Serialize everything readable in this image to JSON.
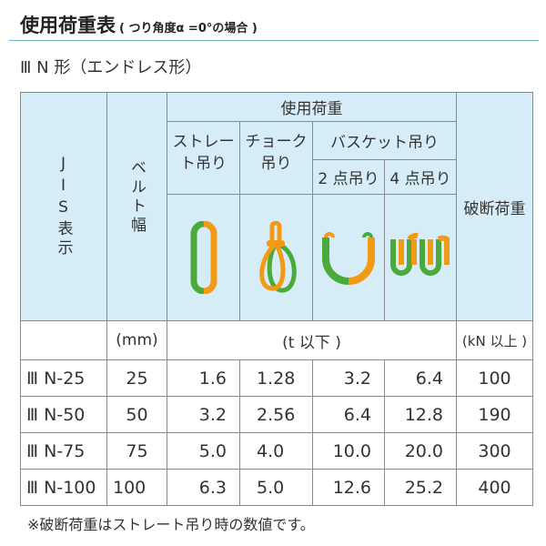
{
  "title": "使用荷重表",
  "title_note": "( つり角度α =0°の場合 )",
  "subtitle": "Ⅲ N 形（エンドレス形）",
  "header": {
    "jis": "JIS表示",
    "belt_width": "ベルト幅",
    "working_load": "使用荷重",
    "straight": "ストレート吊り",
    "choke": "チョーク吊り",
    "basket": "バスケット吊り",
    "two_point": "2 点吊り",
    "four_point": "4 点吊り",
    "breaking_load": "破断荷重"
  },
  "units": {
    "width": "(mm)",
    "load": "(t 以下 )",
    "breaking": "(kN 以上 )"
  },
  "colors": {
    "green": "#4aab3a",
    "orange": "#f39a14",
    "header_bg": "#d6ecf7"
  },
  "rows": [
    {
      "model": "Ⅲ N-25",
      "width": "25",
      "straight": "1.6",
      "choke": "1.28",
      "basket2": "3.2",
      "basket4": "6.4",
      "breaking": "100"
    },
    {
      "model": "Ⅲ N-50",
      "width": "50",
      "straight": "3.2",
      "choke": "2.56",
      "basket2": "6.4",
      "basket4": "12.8",
      "breaking": "190"
    },
    {
      "model": "Ⅲ N-75",
      "width": "75",
      "straight": "5.0",
      "choke": "4.0",
      "basket2": "10.0",
      "basket4": "20.0",
      "breaking": "300"
    },
    {
      "model": "Ⅲ N-100",
      "width": "100",
      "straight": "6.3",
      "choke": "5.0",
      "basket2": "12.6",
      "basket4": "25.2",
      "breaking": "400"
    }
  ],
  "footnote": "※破断荷重はストレート吊り時の数値です。"
}
